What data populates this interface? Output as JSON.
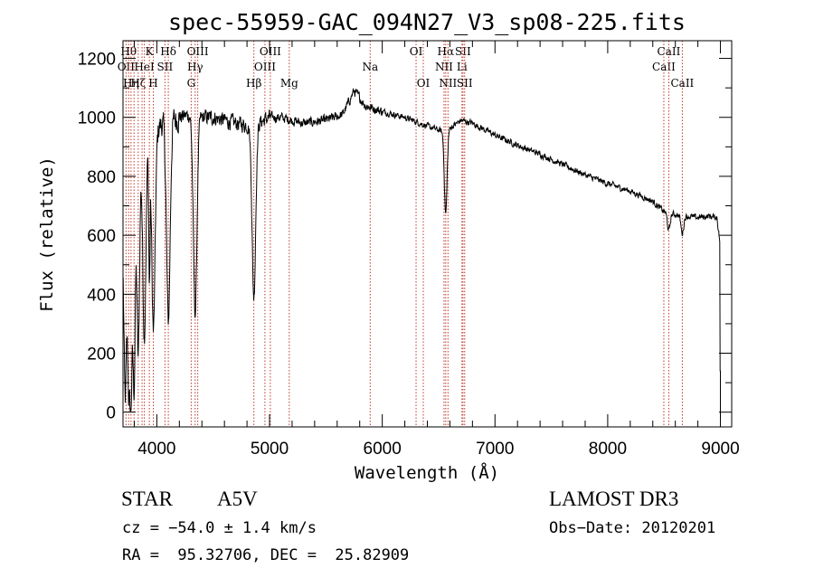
{
  "chart_data": {
    "type": "line",
    "title": "spec-55959-GAC_094N27_V3_sp08-225.fits",
    "xlabel": "Wavelength (Å)",
    "ylabel": "Flux (relative)",
    "xlim": [
      3700,
      9100
    ],
    "ylim": [
      -50,
      1260
    ],
    "x_ticks": [
      4000,
      5000,
      6000,
      7000,
      8000,
      9000
    ],
    "y_ticks": [
      0,
      200,
      400,
      600,
      800,
      1000,
      1200
    ],
    "grid": false,
    "series": [
      {
        "name": "flux",
        "continuum": [
          [
            3700,
            650
          ],
          [
            3750,
            780
          ],
          [
            3800,
            860
          ],
          [
            3850,
            900
          ],
          [
            3900,
            920
          ],
          [
            3950,
            950
          ],
          [
            4000,
            960
          ],
          [
            4050,
            980
          ],
          [
            4100,
            990
          ],
          [
            4200,
            1000
          ],
          [
            4300,
            1010
          ],
          [
            4400,
            1000
          ],
          [
            4500,
            1000
          ],
          [
            4700,
            980
          ],
          [
            4850,
            970
          ],
          [
            5000,
            1000
          ],
          [
            5100,
            1000
          ],
          [
            5300,
            980
          ],
          [
            5500,
            990
          ],
          [
            5650,
            1010
          ],
          [
            5750,
            1090
          ],
          [
            5850,
            1040
          ],
          [
            6000,
            1020
          ],
          [
            6200,
            1000
          ],
          [
            6400,
            970
          ],
          [
            6550,
            950
          ],
          [
            6700,
            990
          ],
          [
            6800,
            980
          ],
          [
            7000,
            940
          ],
          [
            7200,
            905
          ],
          [
            7400,
            875
          ],
          [
            7600,
            840
          ],
          [
            7800,
            805
          ],
          [
            8000,
            775
          ],
          [
            8200,
            750
          ],
          [
            8400,
            715
          ],
          [
            8500,
            680
          ],
          [
            8600,
            670
          ],
          [
            8700,
            665
          ],
          [
            8800,
            660
          ],
          [
            8900,
            665
          ],
          [
            8970,
            660
          ],
          [
            9000,
            560
          ]
        ],
        "absorption_lines": [
          {
            "center": 3720,
            "depth": 650,
            "width": 12
          },
          {
            "center": 3750,
            "depth": 620,
            "width": 10
          },
          {
            "center": 3771,
            "depth": 700,
            "width": 10
          },
          {
            "center": 3798,
            "depth": 760,
            "width": 11
          },
          {
            "center": 3835,
            "depth": 700,
            "width": 12
          },
          {
            "center": 3889,
            "depth": 650,
            "width": 14
          },
          {
            "center": 3934,
            "depth": 470,
            "width": 6
          },
          {
            "center": 3970,
            "depth": 680,
            "width": 15
          },
          {
            "center": 4102,
            "depth": 680,
            "width": 16
          },
          {
            "center": 4340,
            "depth": 670,
            "width": 16
          },
          {
            "center": 4861,
            "depth": 580,
            "width": 16
          },
          {
            "center": 6563,
            "depth": 280,
            "width": 12
          },
          {
            "center": 8542,
            "depth": 60,
            "width": 12
          },
          {
            "center": 8662,
            "depth": 60,
            "width": 12
          }
        ]
      }
    ],
    "line_markers": [
      {
        "wavelength": 3727,
        "label": "OII",
        "row": 1
      },
      {
        "wavelength": 3750,
        "label": "Hθ",
        "row": 0
      },
      {
        "wavelength": 3771,
        "label": "Hη",
        "row": 2
      },
      {
        "wavelength": 3798,
        "label": "",
        "row": 0
      },
      {
        "wavelength": 3835,
        "label": "Hζ",
        "row": 2
      },
      {
        "wavelength": 3869,
        "label": "",
        "row": 0
      },
      {
        "wavelength": 3889,
        "label": "HeI",
        "row": 1
      },
      {
        "wavelength": 3934,
        "label": "K",
        "row": 0
      },
      {
        "wavelength": 3969,
        "label": "H",
        "row": 2
      },
      {
        "wavelength": 4072,
        "label": "SII",
        "row": 1
      },
      {
        "wavelength": 4102,
        "label": "Hδ",
        "row": 0
      },
      {
        "wavelength": 4305,
        "label": "G",
        "row": 2
      },
      {
        "wavelength": 4340,
        "label": "Hγ",
        "row": 1
      },
      {
        "wavelength": 4363,
        "label": "OIII",
        "row": 0
      },
      {
        "wavelength": 4861,
        "label": "Hβ",
        "row": 2
      },
      {
        "wavelength": 4959,
        "label": "OIII",
        "row": 1
      },
      {
        "wavelength": 5007,
        "label": "OIII",
        "row": 0
      },
      {
        "wavelength": 5175,
        "label": "Mg",
        "row": 2
      },
      {
        "wavelength": 5893,
        "label": "Na",
        "row": 1
      },
      {
        "wavelength": 6300,
        "label": "OI",
        "row": 0
      },
      {
        "wavelength": 6364,
        "label": "OI",
        "row": 2
      },
      {
        "wavelength": 6548,
        "label": "NII",
        "row": 1
      },
      {
        "wavelength": 6563,
        "label": "Hα",
        "row": 0
      },
      {
        "wavelength": 6583,
        "label": "NII",
        "row": 2
      },
      {
        "wavelength": 6707,
        "label": "Li",
        "row": 1
      },
      {
        "wavelength": 6716,
        "label": "SII",
        "row": 0
      },
      {
        "wavelength": 6731,
        "label": "SII",
        "row": 2
      },
      {
        "wavelength": 8498,
        "label": "CaII",
        "row": 1
      },
      {
        "wavelength": 8542,
        "label": "CaII",
        "row": 0
      },
      {
        "wavelength": 8662,
        "label": "CaII",
        "row": 2
      }
    ]
  },
  "info": {
    "object_class": "STAR",
    "subclass": "A5V",
    "survey": "LAMOST DR3",
    "cz": "cz = −54.0 ± 1.4 km/s",
    "obs_date": "Obs−Date: 20120201",
    "coords": "RA =  95.32706, DEC =  25.82909"
  }
}
